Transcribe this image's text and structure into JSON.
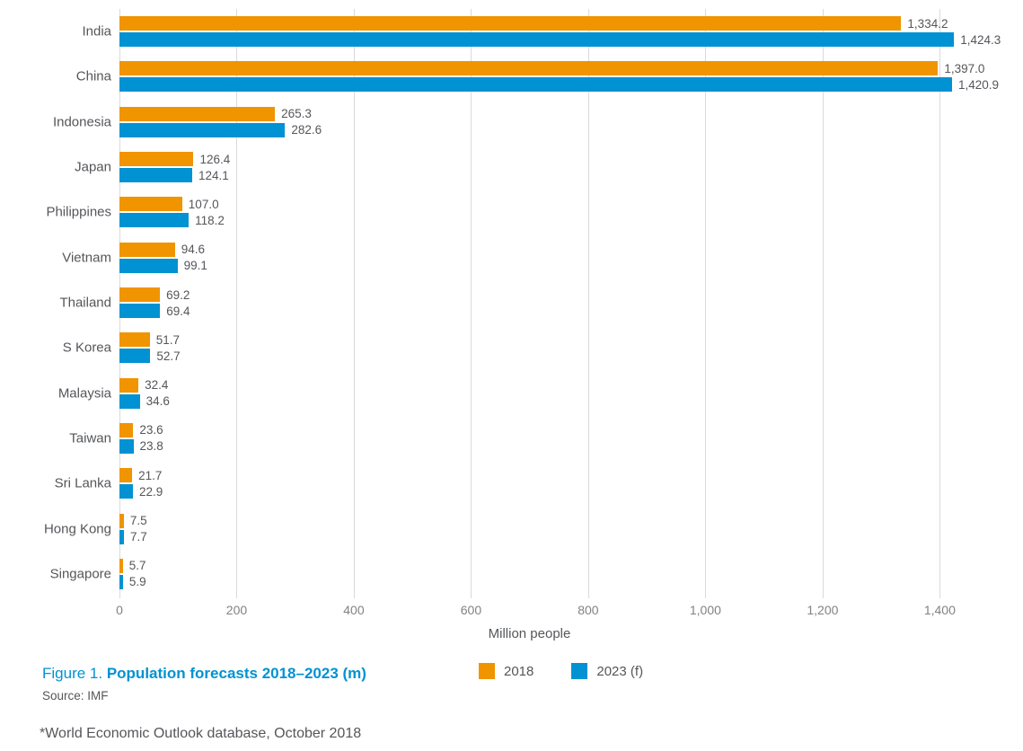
{
  "chart_data": {
    "type": "bar",
    "orientation": "horizontal",
    "categories": [
      "India",
      "China",
      "Indonesia",
      "Japan",
      "Philippines",
      "Vietnam",
      "Thailand",
      "S Korea",
      "Malaysia",
      "Taiwan",
      "Sri Lanka",
      "Hong Kong",
      "Singapore"
    ],
    "series": [
      {
        "name": "2018",
        "color": "#f09400",
        "values": [
          1334.2,
          1397.0,
          265.3,
          126.4,
          107.0,
          94.6,
          69.2,
          51.7,
          32.4,
          23.6,
          21.7,
          7.5,
          5.7
        ]
      },
      {
        "name": "2023 (f)",
        "color": "#0092d2",
        "values": [
          1424.3,
          1420.9,
          282.6,
          124.1,
          118.2,
          99.1,
          69.4,
          52.7,
          34.6,
          23.8,
          22.9,
          7.7,
          5.9
        ]
      }
    ],
    "xlabel": "Million people",
    "x_ticks": [
      0,
      200,
      400,
      600,
      800,
      1000,
      1200,
      1400
    ],
    "x_tick_labels": [
      "0",
      "200",
      "400",
      "600",
      "800",
      "1,000",
      "1,200",
      "1,400"
    ],
    "xlim": [
      0,
      1542
    ],
    "grid": true,
    "legend_position": "bottom",
    "value_labels_shown": true
  },
  "caption": {
    "figure_label": "Figure 1.",
    "title": "Population forecasts 2018–2023 (m)",
    "source": "Source: IMF"
  },
  "footnote": "*World Economic Outlook database, October 2018",
  "colors": {
    "bar_2018": "#f09400",
    "bar_2023": "#0092d2",
    "gridline": "#dadada",
    "label_text": "#55565a",
    "tick_text": "#808285",
    "caption_blue": "#0092d2"
  }
}
